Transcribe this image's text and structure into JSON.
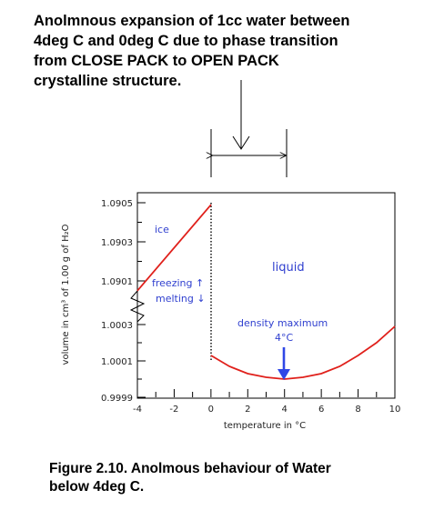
{
  "heading": {
    "lines": [
      "Anolmnous expansion of 1cc water between",
      "4deg C and 0deg C due to phase transition",
      "from CLOSE PACK to OPEN PACK",
      "crystalline structure."
    ]
  },
  "caption": {
    "lines": [
      "Figure 2.10. Anolmous behaviour of Water",
      "below 4deg C."
    ]
  },
  "chart_data": {
    "type": "line",
    "xlabel": "temperature in °C",
    "ylabel": "volume in cm³ of 1.00 g of H₂O",
    "x_ticks": [
      -4,
      -2,
      0,
      2,
      4,
      6,
      8,
      10
    ],
    "x_tick_labels": [
      "-4",
      "-2",
      "0",
      "2",
      "4",
      "6",
      "8",
      "10"
    ],
    "y_tick_labels": [
      "1.0905",
      "1.0903",
      "1.0901",
      "1.0003",
      "1.0001",
      "0.9999"
    ],
    "xlim": [
      -4,
      10
    ],
    "axis_break": "zigzag on y-axis between 1.0901 and 1.0003",
    "series": [
      {
        "name": "ice",
        "x": [
          -4,
          0
        ],
        "y": [
          1.09005,
          1.09049
        ]
      },
      {
        "name": "liquid",
        "x": [
          0,
          1,
          2,
          3,
          4,
          5,
          6,
          7,
          8,
          9,
          10
        ],
        "y": [
          1.00013,
          1.00007,
          1.00003,
          1.00001,
          1.0,
          1.00001,
          1.00003,
          1.00007,
          1.00013,
          1.0002,
          1.00029
        ]
      }
    ],
    "annotations": {
      "ice": "ice",
      "liquid": "liquid",
      "freezing": "freezing ↑",
      "melting": "melting ↓",
      "density_max_1": "density maximum",
      "density_max_2": "4°C"
    },
    "colors": {
      "curve": "#e0201b",
      "arrow": "#2f47e6",
      "label": "#2f3fcf",
      "axis": "#000000"
    }
  }
}
